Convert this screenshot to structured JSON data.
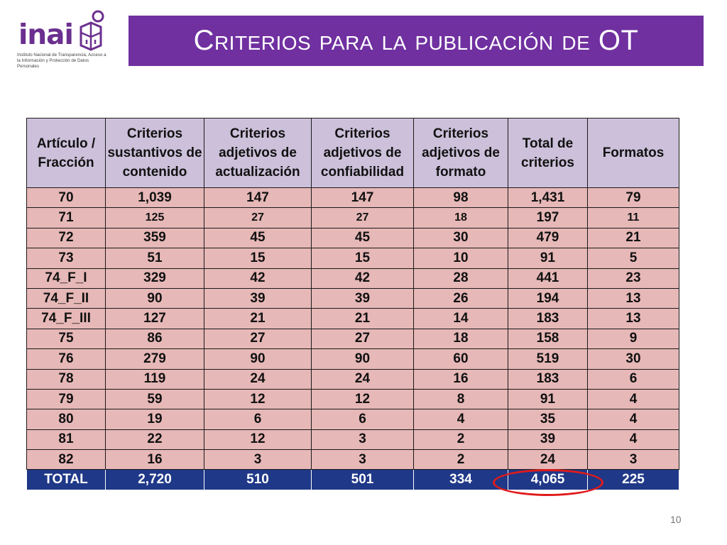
{
  "logo": {
    "wordmark": "inai",
    "subtitle": "Instituto Nacional de Transparencia, Acceso a la Información y Protección de Datos Personales"
  },
  "banner": {
    "title": "Criterios para la publicación de OT"
  },
  "table": {
    "headers": [
      "Artículo / Fracción",
      "Criterios sustantivos de contenido",
      "Criterios adjetivos de actualización",
      "Criterios adjetivos de confiabilidad",
      "Criterios adjetivos de formato",
      "Total de criterios",
      "Formatos"
    ],
    "rows": [
      [
        "70",
        "1,039",
        "147",
        "147",
        "98",
        "1,431",
        "79"
      ],
      [
        "71",
        "125",
        "27",
        "27",
        "18",
        "197",
        "11"
      ],
      [
        "72",
        "359",
        "45",
        "45",
        "30",
        "479",
        "21"
      ],
      [
        "73",
        "51",
        "15",
        "15",
        "10",
        "91",
        "5"
      ],
      [
        "74_F_I",
        "329",
        "42",
        "42",
        "28",
        "441",
        "23"
      ],
      [
        "74_F_II",
        "90",
        "39",
        "39",
        "26",
        "194",
        "13"
      ],
      [
        "74_F_III",
        "127",
        "21",
        "21",
        "14",
        "183",
        "13"
      ],
      [
        "75",
        "86",
        "27",
        "27",
        "18",
        "158",
        "9"
      ],
      [
        "76",
        "279",
        "90",
        "90",
        "60",
        "519",
        "30"
      ],
      [
        "78",
        "119",
        "24",
        "24",
        "16",
        "183",
        "6"
      ],
      [
        "79",
        "59",
        "12",
        "12",
        "8",
        "91",
        "4"
      ],
      [
        "80",
        "19",
        "6",
        "6",
        "4",
        "35",
        "4"
      ],
      [
        "81",
        "22",
        "12",
        "3",
        "2",
        "39",
        "4"
      ],
      [
        "82",
        "16",
        "3",
        "3",
        "2",
        "24",
        "3"
      ]
    ],
    "total": [
      "TOTAL",
      "2,720",
      "510",
      "501",
      "334",
      "4,065",
      "225"
    ]
  },
  "highlight_color": "#e01b1b",
  "page_number": "10"
}
